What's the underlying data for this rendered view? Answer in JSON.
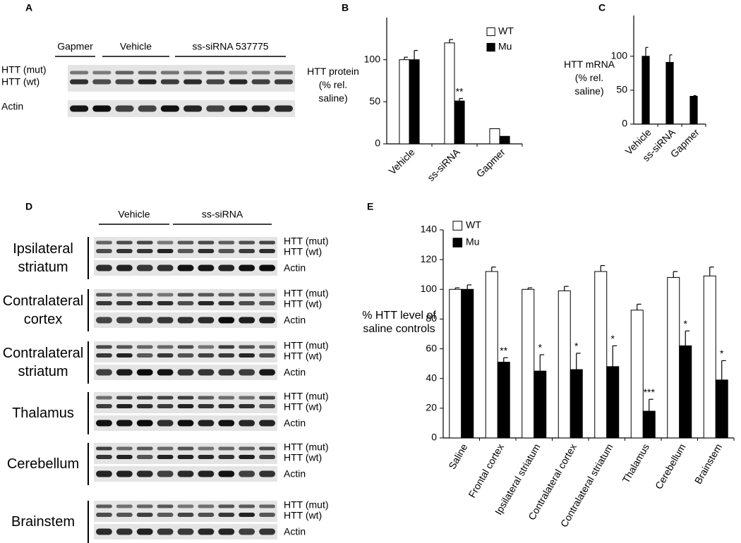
{
  "panel_a": {
    "label": "A",
    "groups": [
      "Gapmer",
      "Vehicle",
      "ss-siRNA 537775"
    ],
    "bands": [
      "HTT (mut)",
      "HTT (wt)",
      "Actin"
    ]
  },
  "panel_d": {
    "label": "D",
    "groups": [
      "Vehicle",
      "ss-siRNA"
    ],
    "regions": [
      {
        "name": "Ipsilateral striatum",
        "bands": [
          "HTT (mut)",
          "HTT (wt)",
          "Actin"
        ]
      },
      {
        "name": "Contralateral cortex",
        "bands": [
          "HTT (mut)",
          "HTT (wt)",
          "Actin"
        ]
      },
      {
        "name": "Contralateral striatum",
        "bands": [
          "HTT (mut)",
          "HTT (wt)",
          "Actin"
        ]
      },
      {
        "name": "Thalamus",
        "bands": [
          "HTT (mut)",
          "HTT (wt)",
          "Actin"
        ]
      },
      {
        "name": "Cerebellum",
        "bands": [
          "HTT (mut)",
          "HTT (wt)",
          "Actin"
        ]
      },
      {
        "name": "Brainstem",
        "bands": [
          "HTT (mut)",
          "HTT (wt)",
          "Actin"
        ]
      }
    ]
  },
  "chart_data": [
    {
      "type": "bar",
      "panel": "B",
      "y_label": "HTT protein (% rel. saline)",
      "categories": [
        "Vehicle",
        "ss-siRNA",
        "Gapmer"
      ],
      "series": [
        {
          "name": "WT",
          "color": "#ffffff",
          "values": [
            100,
            120,
            18
          ],
          "errors": [
            3,
            4,
            null
          ],
          "annotations": [
            null,
            null,
            null
          ]
        },
        {
          "name": "Mu",
          "color": "#000000",
          "values": [
            100,
            51,
            9
          ],
          "errors": [
            11,
            3,
            null
          ],
          "annotations": [
            null,
            "**",
            null
          ]
        }
      ],
      "ylim": [
        0,
        150
      ],
      "yticks": [
        0,
        50,
        100
      ],
      "legend": "upper right"
    },
    {
      "type": "bar",
      "panel": "C",
      "y_label": "HTT mRNA (% rel. saline)",
      "categories": [
        "Vehicle",
        "ss-siRNA",
        "Gapmer"
      ],
      "series": [
        {
          "color": "#000000",
          "values": [
            100,
            91,
            41
          ],
          "errors": [
            13,
            11,
            1
          ]
        }
      ],
      "ylim": [
        0,
        160
      ],
      "yticks": [
        0,
        50,
        100
      ]
    },
    {
      "type": "bar",
      "panel": "E",
      "y_label": "% HTT level of saline controls",
      "categories": [
        "Saline",
        "Frontal cortex",
        "Ipsilateral striatum",
        "Contralateral cortex",
        "Contralateral striatum",
        "Thalamus",
        "Cerebellum",
        "Brainstem"
      ],
      "series": [
        {
          "name": "WT",
          "color": "#ffffff",
          "values": [
            100,
            112,
            100,
            99,
            112,
            86,
            108,
            109
          ],
          "errors": [
            1,
            3,
            1,
            3,
            4,
            4,
            4,
            6
          ]
        },
        {
          "name": "Mu",
          "color": "#000000",
          "values": [
            100,
            51,
            45,
            46,
            48,
            18,
            62,
            39
          ],
          "errors": [
            3,
            3,
            11,
            11,
            14,
            8,
            10,
            13
          ],
          "annotations": [
            null,
            "**",
            "*",
            "*",
            "*",
            "***",
            "*",
            "*"
          ]
        }
      ],
      "ylim": [
        0,
        140
      ],
      "yticks": [
        0,
        20,
        40,
        60,
        80,
        100,
        120,
        140
      ],
      "legend": "upper left"
    }
  ]
}
